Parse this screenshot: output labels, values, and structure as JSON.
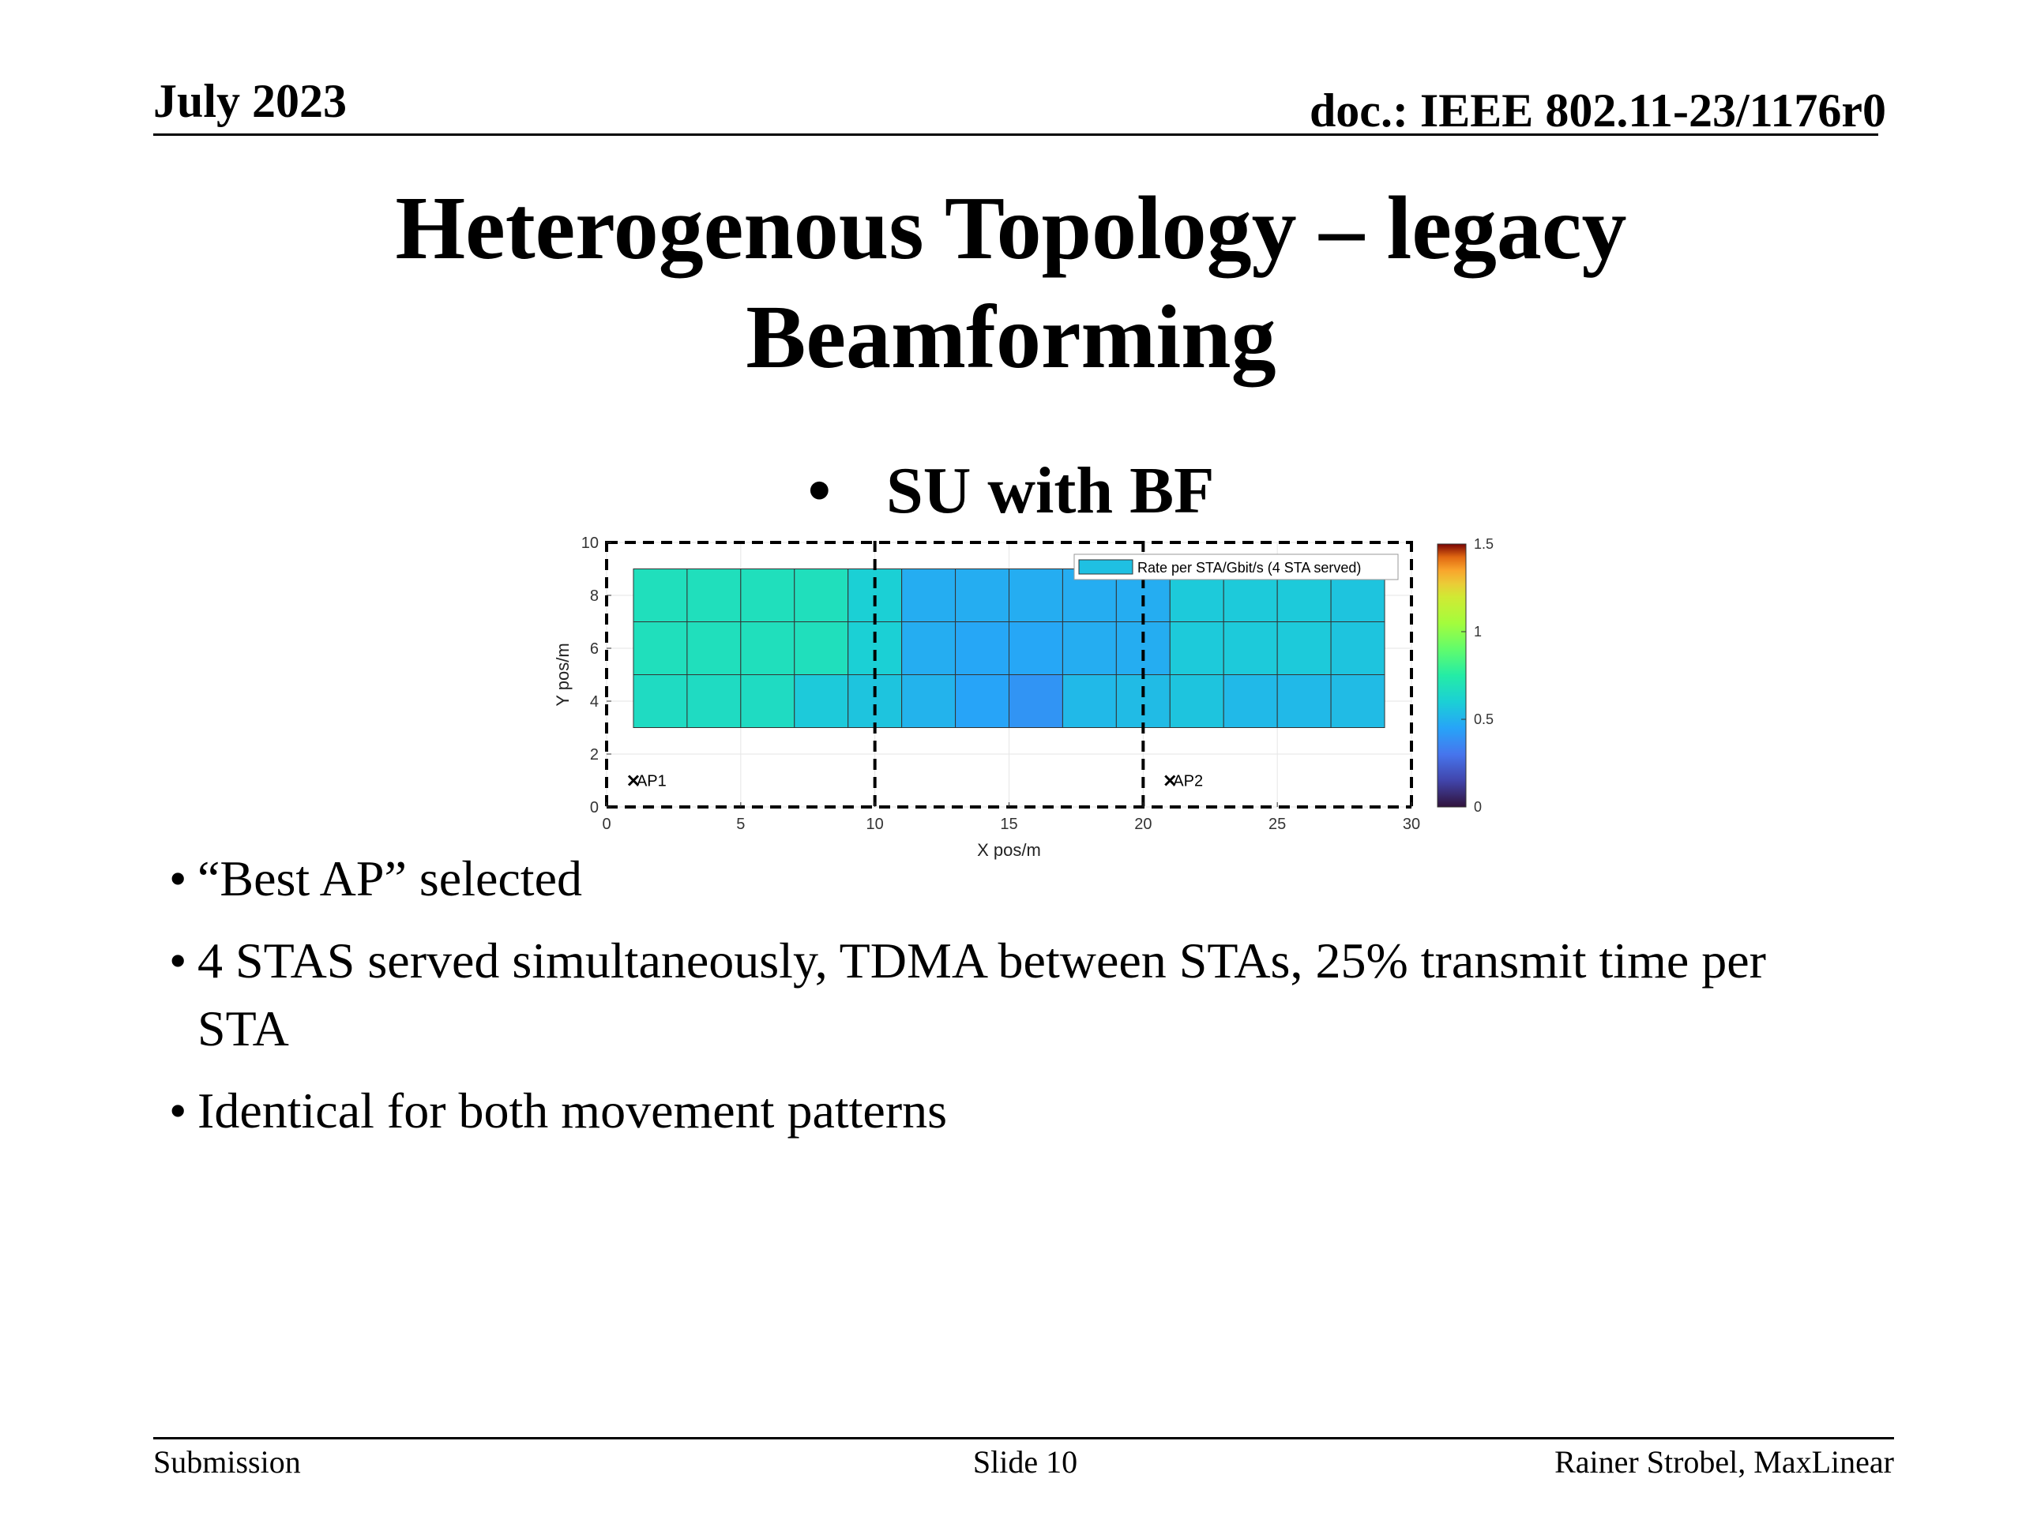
{
  "header": {
    "date": "July 2023",
    "doc": "doc.: IEEE 802.11-23/1176r0"
  },
  "title": {
    "line1": "Heterogenous Topology – legacy",
    "line2": "Beamforming"
  },
  "sub_bullet": {
    "symbol": "•",
    "text": "SU with BF"
  },
  "bullets": [
    {
      "symbol": "•",
      "text": "“Best AP” selected"
    },
    {
      "symbol": "•",
      "text": "4 STAS served simultaneously, TDMA between STAs, 25% transmit time per STA"
    },
    {
      "symbol": "•",
      "text": "Identical for both movement patterns"
    }
  ],
  "footer": {
    "left": "Submission",
    "center": "Slide 10",
    "right": "Rainer Strobel, MaxLinear"
  },
  "chart_data": {
    "type": "heatmap",
    "xlabel": "X pos/m",
    "ylabel": "Y pos/m",
    "xlim": [
      0,
      30
    ],
    "ylim": [
      0,
      10
    ],
    "xticks": [
      0,
      5,
      10,
      15,
      20,
      25,
      30
    ],
    "yticks": [
      0,
      2,
      4,
      6,
      8,
      10
    ],
    "grid": true,
    "legend": {
      "label": "Rate per STA/Gbit/s (4 STA served)",
      "placement": "top-right"
    },
    "colorbar": {
      "range": [
        0,
        1.5
      ],
      "ticks": [
        "0",
        "0.5",
        "1",
        "1.5"
      ],
      "colormap": "turbo"
    },
    "cells": {
      "x_start": 1,
      "x_end": 29,
      "y_start": 3,
      "y_end": 9,
      "cols": 14,
      "rows": 3,
      "values": [
        [
          0.68,
          0.68,
          0.68,
          0.68,
          0.6,
          0.48,
          0.48,
          0.48,
          0.48,
          0.48,
          0.58,
          0.58,
          0.58,
          0.56
        ],
        [
          0.68,
          0.68,
          0.68,
          0.68,
          0.6,
          0.48,
          0.46,
          0.46,
          0.48,
          0.48,
          0.58,
          0.58,
          0.58,
          0.56
        ],
        [
          0.66,
          0.66,
          0.66,
          0.58,
          0.56,
          0.5,
          0.45,
          0.4,
          0.52,
          0.53,
          0.56,
          0.52,
          0.52,
          0.53
        ]
      ]
    },
    "region_boundaries_x": [
      0,
      10,
      20,
      30
    ],
    "access_points": [
      {
        "name": "AP1",
        "x": 1,
        "y": 1
      },
      {
        "name": "AP2",
        "x": 21,
        "y": 1
      }
    ]
  }
}
